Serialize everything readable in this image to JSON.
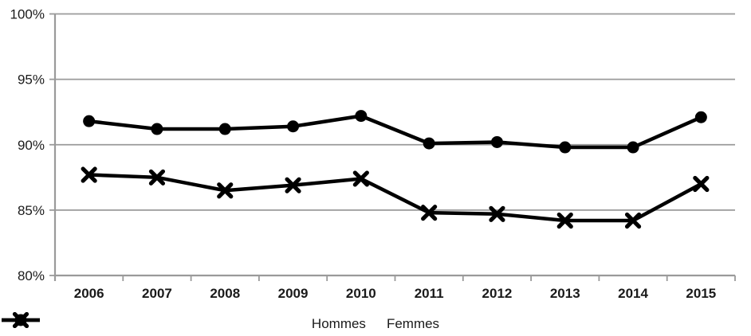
{
  "chart_data": {
    "type": "line",
    "title": "",
    "xlabel": "",
    "ylabel": "",
    "categories": [
      "2006",
      "2007",
      "2008",
      "2009",
      "2010",
      "2011",
      "2012",
      "2013",
      "2014",
      "2015"
    ],
    "series": [
      {
        "name": "Hommes",
        "marker": "x",
        "color": "#000000",
        "values": [
          87.7,
          87.5,
          86.5,
          86.9,
          87.4,
          84.8,
          84.7,
          84.2,
          84.2,
          87.0
        ]
      },
      {
        "name": "Femmes",
        "marker": "circle",
        "color": "#000000",
        "values": [
          91.8,
          91.2,
          91.2,
          91.4,
          92.2,
          90.1,
          90.2,
          89.8,
          89.8,
          92.1
        ]
      }
    ],
    "ylim": [
      80,
      100
    ],
    "yticks": [
      80,
      85,
      90,
      95,
      100
    ],
    "ytick_labels": [
      "80%",
      "85%",
      "90%",
      "95%",
      "100%"
    ],
    "grid": true,
    "legend_position": "bottom"
  },
  "style": {
    "background": "#ffffff",
    "grid_color": "#9a9a9a",
    "axis_color": "#9a9a9a",
    "label_color": "#1a1a1a",
    "series_color": "#000000"
  }
}
